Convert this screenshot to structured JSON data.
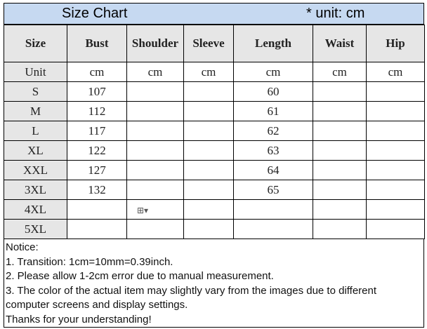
{
  "title": "Size Chart",
  "unit_note": "* unit: cm",
  "headers": [
    "Size",
    "Bust",
    "Shoulder",
    "Sleeve",
    "Length",
    "Waist",
    "Hip"
  ],
  "rows": [
    [
      "Unit",
      "cm",
      "cm",
      "cm",
      "cm",
      "cm",
      "cm"
    ],
    [
      "S",
      "107",
      "",
      "",
      "60",
      "",
      ""
    ],
    [
      "M",
      "112",
      "",
      "",
      "61",
      "",
      ""
    ],
    [
      "L",
      "117",
      "",
      "",
      "62",
      "",
      ""
    ],
    [
      "XL",
      "122",
      "",
      "",
      "63",
      "",
      ""
    ],
    [
      "XXL",
      "127",
      "",
      "",
      "64",
      "",
      ""
    ],
    [
      "3XL",
      "132",
      "",
      "",
      "65",
      "",
      ""
    ],
    [
      "4XL",
      "",
      "",
      "",
      "",
      "",
      ""
    ],
    [
      "5XL",
      "",
      "",
      "",
      "",
      "",
      ""
    ]
  ],
  "paste_options_icon": "paste-options-icon",
  "notice": [
    "Notice:",
    "1. Transition: 1cm=10mm=0.39inch.",
    "2. Please allow 1-2cm error due to manual measurement.",
    "3. The color of the actual item may slightly vary from the images due to different computer screens and display settings.",
    "Thanks for your understanding!"
  ]
}
